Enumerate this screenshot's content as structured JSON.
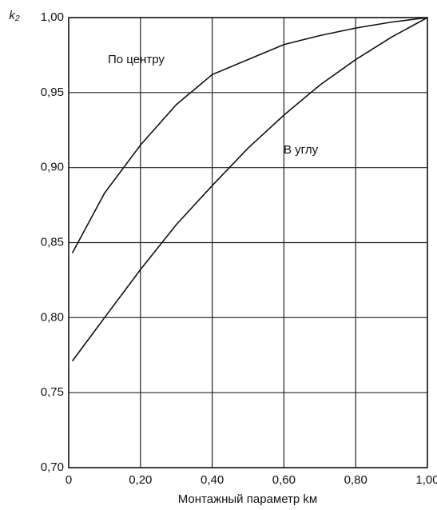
{
  "chart_data": {
    "type": "line",
    "y_label": "k₂",
    "x_label": "Монтажный параметр kм",
    "x": [
      0.01,
      0.1,
      0.2,
      0.3,
      0.4,
      0.5,
      0.6,
      0.7,
      0.8,
      0.9,
      1.0
    ],
    "series": [
      {
        "name": "По центру",
        "color": "#111111",
        "values": [
          0.843,
          0.883,
          0.915,
          0.942,
          0.962,
          0.972,
          0.982,
          0.988,
          0.993,
          0.997,
          1.0
        ]
      },
      {
        "name": "В углу",
        "color": "#111111",
        "values": [
          0.771,
          0.8,
          0.832,
          0.862,
          0.888,
          0.913,
          0.935,
          0.955,
          0.972,
          0.987,
          1.0
        ]
      }
    ],
    "xlim": [
      0,
      1.0
    ],
    "ylim": [
      0.7,
      1.0
    ],
    "xticks": [
      0,
      {
        "value": 0.2,
        "label": "0,20"
      },
      {
        "value": 0.4,
        "label": "0,40"
      },
      {
        "value": 0.6,
        "label": "0,60"
      },
      {
        "value": 0.8,
        "label": "0,80"
      },
      {
        "value": 1.0,
        "label": "1,00"
      }
    ],
    "yticks": [
      {
        "value": 0.7,
        "label": "0,70"
      },
      {
        "value": 0.75,
        "label": "0,75"
      },
      {
        "value": 0.8,
        "label": "0,80"
      },
      {
        "value": 0.85,
        "label": "0,85"
      },
      {
        "value": 0.9,
        "label": "0,90"
      },
      {
        "value": 0.95,
        "label": "0,95"
      },
      {
        "value": 1.0,
        "label": "1,00"
      }
    ],
    "grid": true
  }
}
